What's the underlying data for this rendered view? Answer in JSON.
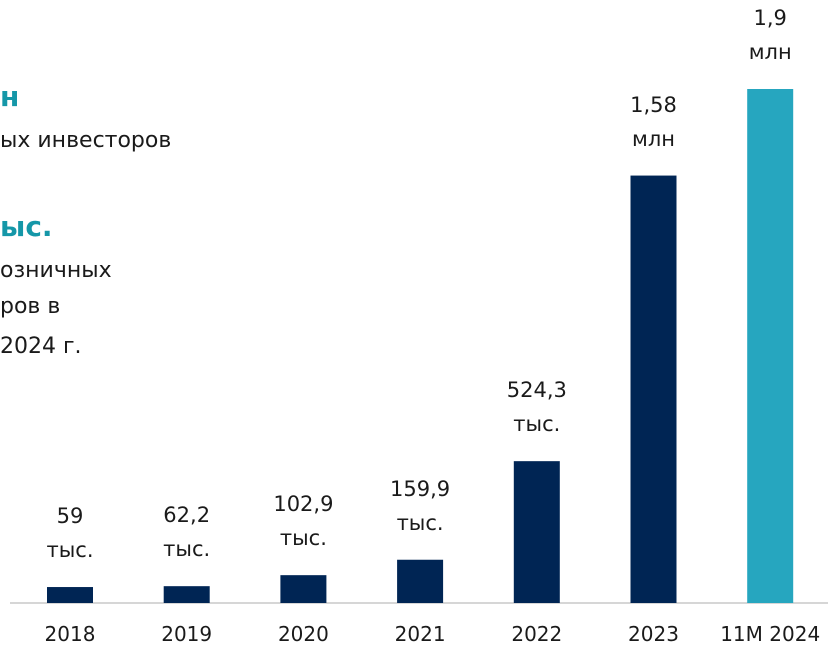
{
  "chart_data": {
    "type": "bar",
    "annotations": [
      "н",
      "ых инвесторов",
      "ыс.",
      "озничных",
      "ров в",
      "2024 г."
    ],
    "categories": [
      "2018",
      "2019",
      "2020",
      "2021",
      "2022",
      "2023",
      "11M 2024"
    ],
    "values": [
      59,
      62.2,
      102.9,
      159.9,
      524.3,
      1580,
      1900
    ],
    "value_labels": [
      "59\nтыс.",
      "62,2\nтыс.",
      "102,9\nтыс.",
      "159,9\nтыс.",
      "524,3\nтыс.",
      "1,58\nмлн",
      "1,9\nмлн"
    ],
    "colors": [
      "#002554",
      "#002554",
      "#002554",
      "#002554",
      "#002554",
      "#002554",
      "#26a6bf"
    ]
  }
}
